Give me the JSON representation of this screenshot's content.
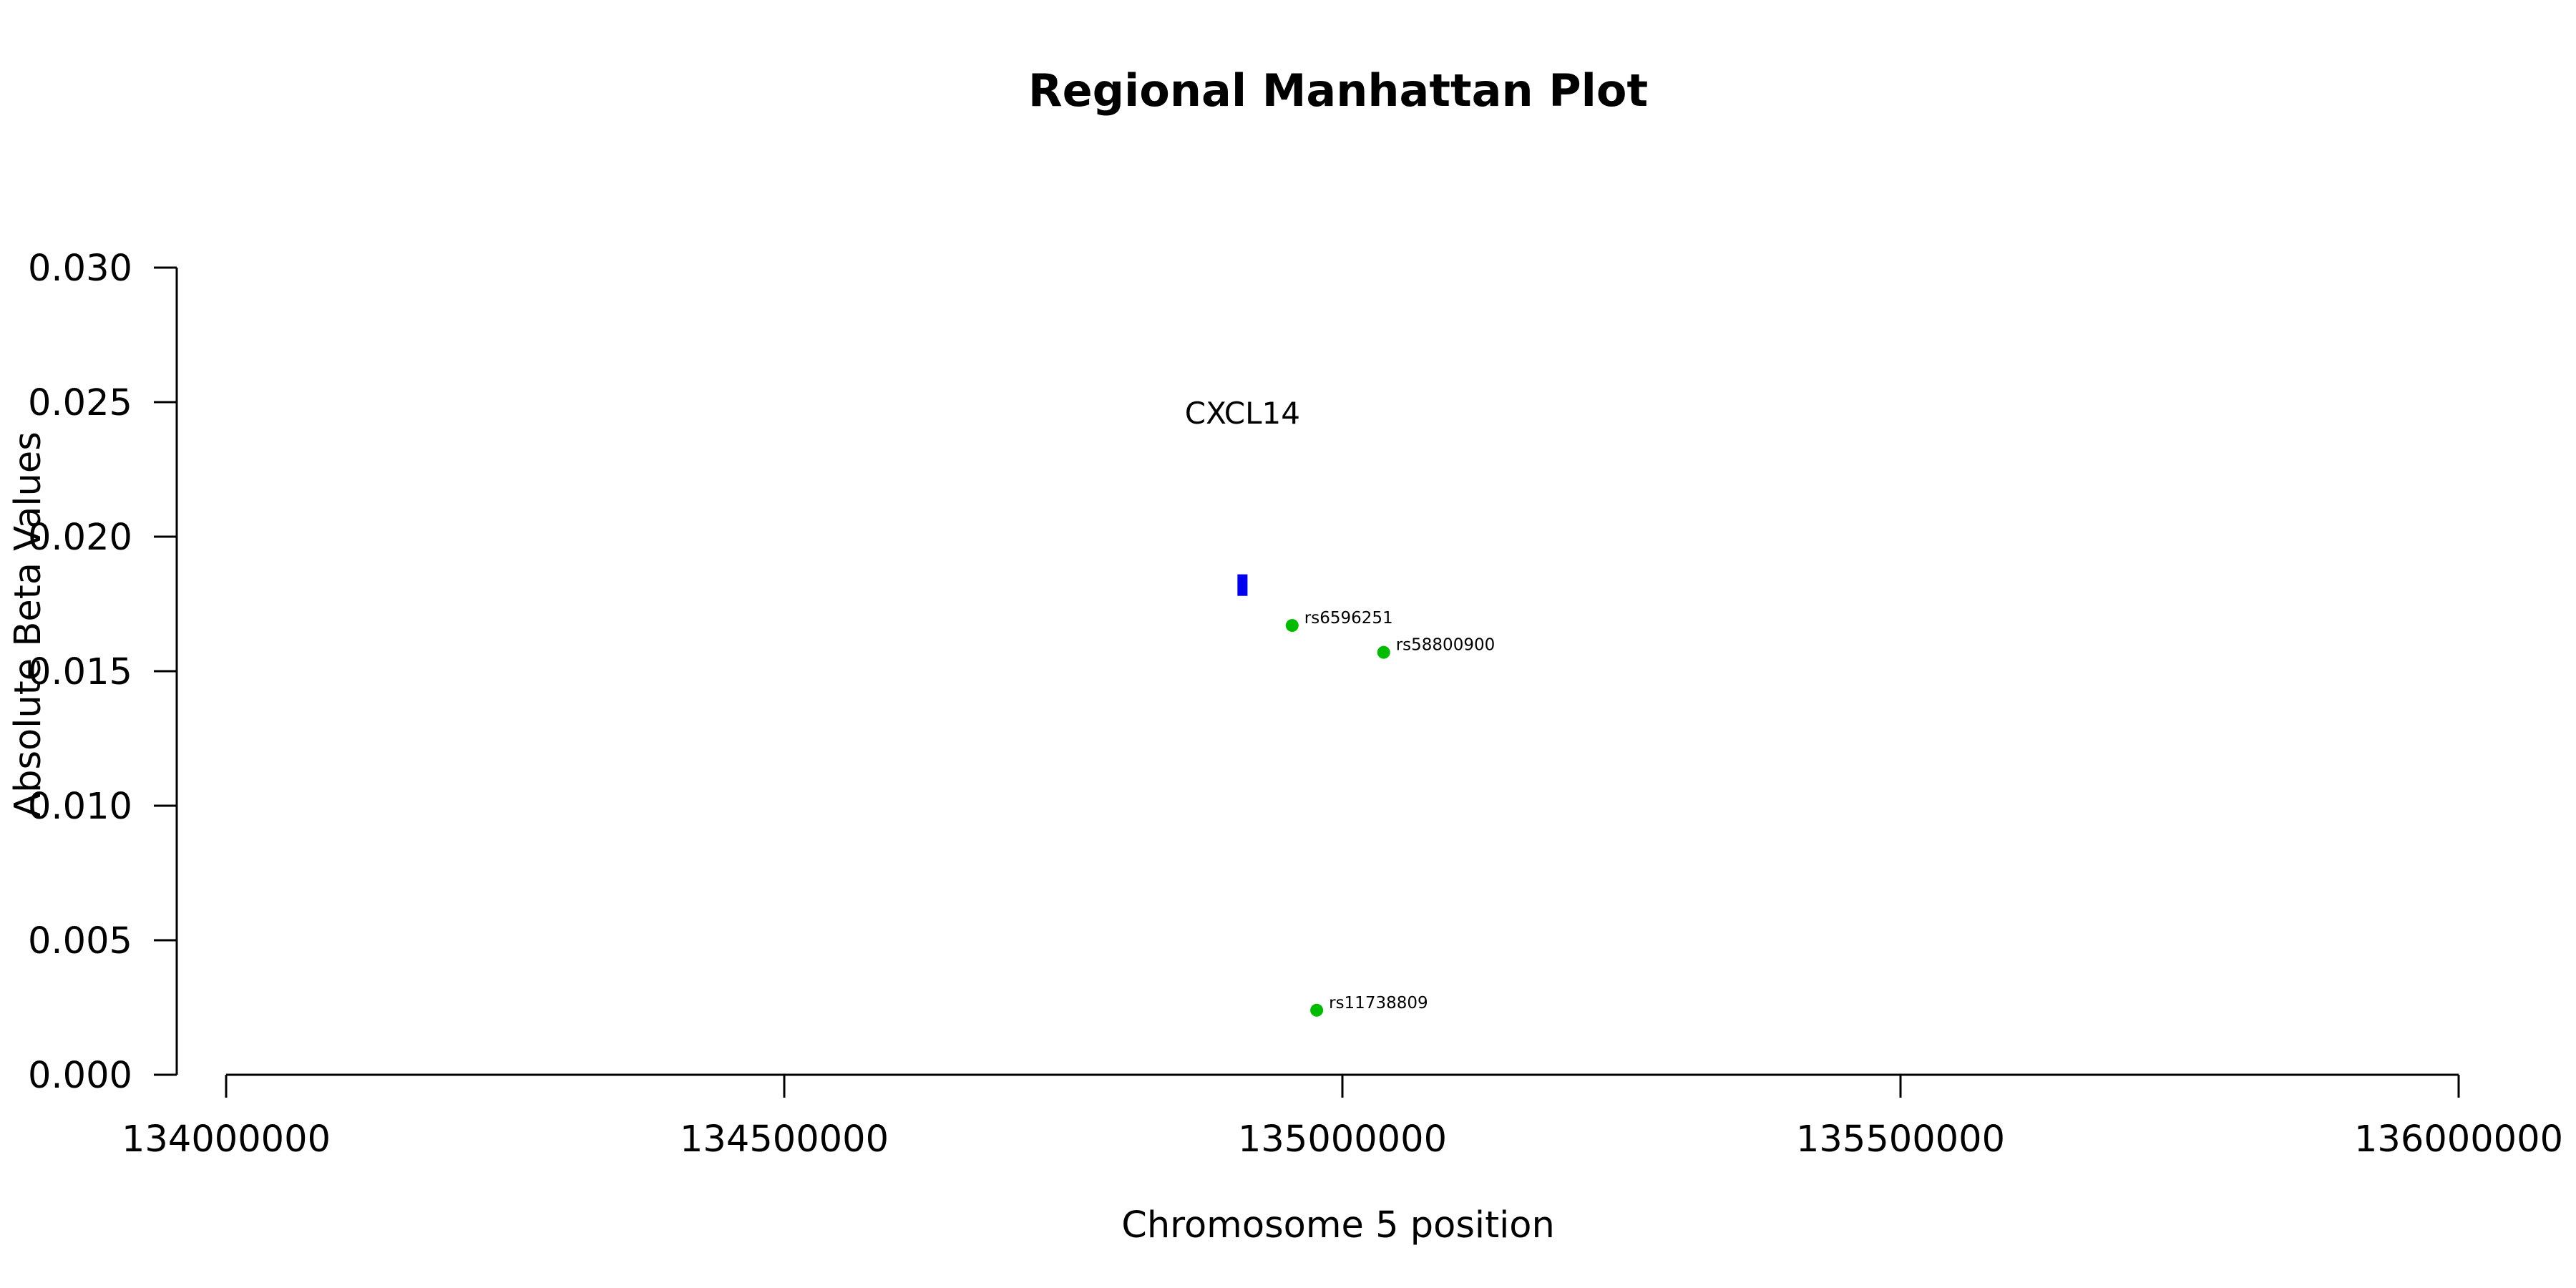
{
  "chart_data": {
    "type": "scatter",
    "title": "Regional Manhattan Plot",
    "xlabel": "Chromosome 5 position",
    "ylabel": "Absolute Beta Values",
    "xlim": [
      134000000,
      136000000
    ],
    "ylim": [
      0,
      0.03
    ],
    "x_ticks": [
      134000000,
      134500000,
      135000000,
      135500000,
      136000000
    ],
    "x_tick_labels": [
      "134000000",
      "134500000",
      "135000000",
      "135500000",
      "136000000"
    ],
    "y_ticks": [
      0,
      0.005,
      0.01,
      0.015,
      0.02,
      0.025,
      0.03
    ],
    "y_tick_labels": [
      "0.000",
      "0.005",
      "0.010",
      "0.015",
      "0.020",
      "0.025",
      "0.030"
    ],
    "grid": false,
    "points": [
      {
        "label": "rs6596251",
        "x": 134955000,
        "y": 0.0167
      },
      {
        "label": "rs58800900",
        "x": 135037000,
        "y": 0.0157
      },
      {
        "label": "rs11738809",
        "x": 134977000,
        "y": 0.0024
      }
    ],
    "genes": [
      {
        "label": "CXCL14",
        "start": 134906000,
        "end": 134915000,
        "y_low": 0.0178,
        "y_high": 0.0186,
        "label_y": 0.0246
      }
    ],
    "colors": {
      "snp": "#00bb00",
      "gene": "#0000ee"
    }
  }
}
